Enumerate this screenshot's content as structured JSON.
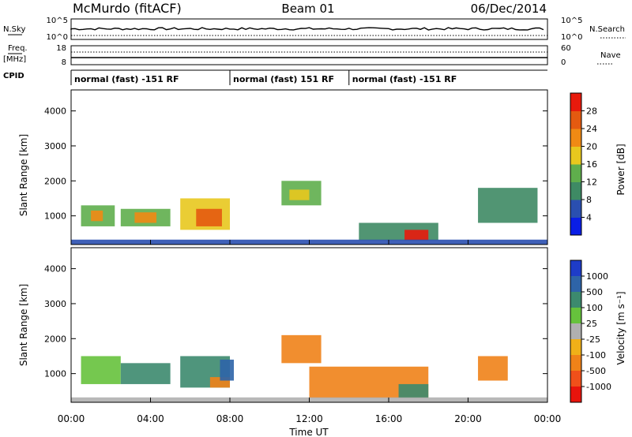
{
  "header": {
    "title": "McMurdo (fitACF)",
    "beam": "Beam 01",
    "date": "06/Dec/2014"
  },
  "top_panels": {
    "nsky_label": "N.Sky",
    "nsky_ticks": [
      "10^5",
      "10^0"
    ],
    "nsearch_label": "N.Search",
    "nsearch_ticks": [
      "10^5",
      "10^0"
    ],
    "freq_label_1": "Freq.",
    "freq_label_2": "[MHz]",
    "freq_ticks": [
      "18",
      "8"
    ],
    "nave_label": "Nave",
    "nave_ticks": [
      "60",
      "0"
    ],
    "cpid_label": "CPID",
    "cpid_segments": [
      {
        "label": "normal (fast) -151 RF",
        "start_hour": 0,
        "end_hour": 8
      },
      {
        "label": "normal (fast) 151 RF",
        "start_hour": 8,
        "end_hour": 14
      },
      {
        "label": "normal (fast) -151 RF",
        "start_hour": 14,
        "end_hour": 24
      }
    ]
  },
  "axes": {
    "x_ticks": [
      "00:00",
      "04:00",
      "08:00",
      "12:00",
      "16:00",
      "20:00",
      "00:00"
    ],
    "x_label": "Time UT",
    "y_label": "Slant Range [km]",
    "y_ticks": [
      "1000",
      "2000",
      "3000",
      "4000"
    ]
  },
  "power_bar": {
    "label": "Power [dB]",
    "ticks": [
      "4",
      "8",
      "12",
      "16",
      "20",
      "24",
      "28"
    ],
    "colors": [
      "#0a1ee6",
      "#2a4fb0",
      "#3e8a64",
      "#5fae4c",
      "#e8c81e",
      "#f08a14",
      "#e45a10",
      "#e81a0c"
    ]
  },
  "velocity_bar": {
    "label": "Velocity [m s⁻¹]",
    "ticks": [
      "1000",
      "500",
      "100",
      "25",
      "-25",
      "-100",
      "-500",
      "-1000"
    ],
    "colors": [
      "#1e3cc8",
      "#2e64a8",
      "#3c8a6e",
      "#66c23c",
      "#b0b0b0",
      "#f0b018",
      "#f08218",
      "#f0501a",
      "#e8140c"
    ]
  },
  "chart_data": [
    {
      "type": "heatmap",
      "title": "Power",
      "xlabel": "Time UT",
      "ylabel": "Slant Range [km]",
      "xlim": [
        0,
        24
      ],
      "ylim": [
        180,
        4600
      ],
      "colorbar_label": "Power [dB]",
      "colorbar_range": [
        0,
        30
      ],
      "regions": [
        {
          "t0": 0.5,
          "t1": 2.2,
          "r0": 700,
          "r1": 1300,
          "value": 12
        },
        {
          "t0": 1.0,
          "t1": 1.6,
          "r0": 850,
          "r1": 1150,
          "value": 22
        },
        {
          "t0": 2.5,
          "t1": 5.0,
          "r0": 700,
          "r1": 1200,
          "value": 14
        },
        {
          "t0": 3.2,
          "t1": 4.3,
          "r0": 800,
          "r1": 1100,
          "value": 20
        },
        {
          "t0": 5.5,
          "t1": 8.0,
          "r0": 600,
          "r1": 1500,
          "value": 16
        },
        {
          "t0": 6.3,
          "t1": 7.6,
          "r0": 700,
          "r1": 1200,
          "value": 26
        },
        {
          "t0": 10.6,
          "t1": 12.6,
          "r0": 1300,
          "r1": 2000,
          "value": 12
        },
        {
          "t0": 11.0,
          "t1": 12.0,
          "r0": 1450,
          "r1": 1750,
          "value": 18
        },
        {
          "t0": 14.5,
          "t1": 18.5,
          "r0": 300,
          "r1": 800,
          "value": 10
        },
        {
          "t0": 16.8,
          "t1": 18.0,
          "r0": 300,
          "r1": 600,
          "value": 28
        },
        {
          "t0": 20.5,
          "t1": 23.5,
          "r0": 800,
          "r1": 1800,
          "value": 8
        },
        {
          "t0": 0.0,
          "t1": 24.0,
          "r0": 180,
          "r1": 320,
          "value": 6
        }
      ]
    },
    {
      "type": "heatmap",
      "title": "Velocity",
      "xlabel": "Time UT",
      "ylabel": "Slant Range [km]",
      "xlim": [
        0,
        24
      ],
      "ylim": [
        180,
        4600
      ],
      "colorbar_label": "Velocity [m s⁻¹]",
      "colorbar_range": [
        -1000,
        1000
      ],
      "regions": [
        {
          "t0": 0.5,
          "t1": 2.5,
          "r0": 700,
          "r1": 1500,
          "value": 80
        },
        {
          "t0": 2.5,
          "t1": 5.0,
          "r0": 700,
          "r1": 1300,
          "value": 150
        },
        {
          "t0": 5.5,
          "t1": 8.0,
          "r0": 600,
          "r1": 1500,
          "value": 200
        },
        {
          "t0": 7.0,
          "t1": 8.0,
          "r0": 600,
          "r1": 900,
          "value": -300
        },
        {
          "t0": 7.5,
          "t1": 8.2,
          "r0": 800,
          "r1": 1400,
          "value": 700
        },
        {
          "t0": 10.6,
          "t1": 12.6,
          "r0": 1300,
          "r1": 2100,
          "value": -400
        },
        {
          "t0": 12.0,
          "t1": 18.0,
          "r0": 300,
          "r1": 1200,
          "value": -150
        },
        {
          "t0": 16.5,
          "t1": 18.0,
          "r0": 300,
          "r1": 700,
          "value": 150
        },
        {
          "t0": 20.5,
          "t1": 22.0,
          "r0": 800,
          "r1": 1500,
          "value": -200
        },
        {
          "t0": 0.0,
          "t1": 24.0,
          "r0": 180,
          "r1": 320,
          "value": 20
        }
      ]
    }
  ]
}
